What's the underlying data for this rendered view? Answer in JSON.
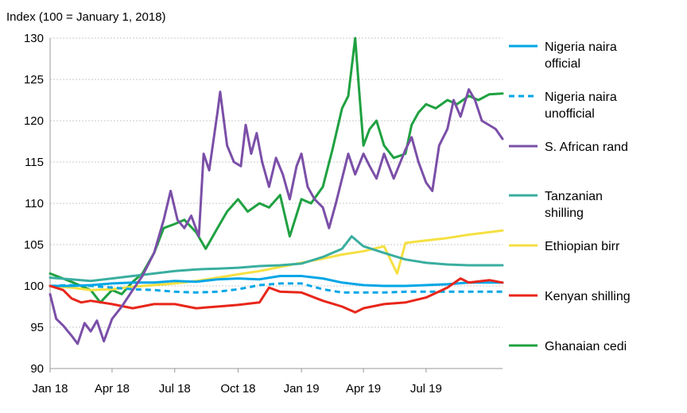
{
  "chart_data": {
    "type": "line",
    "title": "Index (100 = January 1, 2018)",
    "xlabel": "",
    "ylabel": "",
    "ylim": [
      90,
      130
    ],
    "yticks": [
      90,
      95,
      100,
      105,
      110,
      115,
      120,
      125,
      130
    ],
    "xlim": [
      "2018-01-01",
      "2019-10-20"
    ],
    "xticks": [
      {
        "date": "2018-01-01",
        "label": "Jan 18"
      },
      {
        "date": "2018-04-01",
        "label": "Apr 18"
      },
      {
        "date": "2018-07-01",
        "label": "Jul 18"
      },
      {
        "date": "2018-10-01",
        "label": "Oct 18"
      },
      {
        "date": "2019-01-01",
        "label": "Jan 19"
      },
      {
        "date": "2019-04-01",
        "label": "Apr 19"
      },
      {
        "date": "2019-07-01",
        "label": "Jul 19"
      }
    ],
    "grid": true,
    "legend_position": "right",
    "series": [
      {
        "name": "Nigeria naira official",
        "color": "#00a6e6",
        "dash": false,
        "points": [
          [
            "2018-01-01",
            100.0
          ],
          [
            "2018-02-01",
            100.0
          ],
          [
            "2018-03-01",
            100.1
          ],
          [
            "2018-04-01",
            100.3
          ],
          [
            "2018-05-01",
            100.4
          ],
          [
            "2018-06-01",
            100.4
          ],
          [
            "2018-07-01",
            100.6
          ],
          [
            "2018-08-01",
            100.5
          ],
          [
            "2018-09-01",
            100.8
          ],
          [
            "2018-10-01",
            100.9
          ],
          [
            "2018-11-01",
            100.8
          ],
          [
            "2018-12-01",
            101.2
          ],
          [
            "2019-01-01",
            101.2
          ],
          [
            "2019-02-01",
            100.9
          ],
          [
            "2019-03-01",
            100.4
          ],
          [
            "2019-04-01",
            100.1
          ],
          [
            "2019-05-01",
            100.0
          ],
          [
            "2019-06-01",
            100.0
          ],
          [
            "2019-07-01",
            100.1
          ],
          [
            "2019-08-01",
            100.2
          ],
          [
            "2019-09-01",
            100.4
          ],
          [
            "2019-10-20",
            100.4
          ]
        ]
      },
      {
        "name": "Nigeria naira unofficial",
        "color": "#00a6e6",
        "dash": true,
        "points": [
          [
            "2018-01-01",
            100.0
          ],
          [
            "2018-02-01",
            100.1
          ],
          [
            "2018-03-01",
            100.0
          ],
          [
            "2018-04-01",
            99.8
          ],
          [
            "2018-05-01",
            99.6
          ],
          [
            "2018-06-01",
            99.5
          ],
          [
            "2018-07-01",
            99.3
          ],
          [
            "2018-08-01",
            99.2
          ],
          [
            "2018-09-01",
            99.3
          ],
          [
            "2018-10-01",
            99.6
          ],
          [
            "2018-11-01",
            100.1
          ],
          [
            "2018-12-01",
            100.3
          ],
          [
            "2019-01-01",
            100.3
          ],
          [
            "2019-02-01",
            99.6
          ],
          [
            "2019-03-01",
            99.2
          ],
          [
            "2019-04-01",
            99.2
          ],
          [
            "2019-05-01",
            99.2
          ],
          [
            "2019-06-01",
            99.3
          ],
          [
            "2019-07-01",
            99.3
          ],
          [
            "2019-08-01",
            99.3
          ],
          [
            "2019-09-01",
            99.3
          ],
          [
            "2019-10-20",
            99.3
          ]
        ]
      },
      {
        "name": "S. African rand",
        "color": "#7b4fa8",
        "dash": false,
        "points": [
          [
            "2018-01-01",
            99.0
          ],
          [
            "2018-01-10",
            96.0
          ],
          [
            "2018-01-20",
            95.2
          ],
          [
            "2018-02-01",
            94.0
          ],
          [
            "2018-02-10",
            93.0
          ],
          [
            "2018-02-20",
            95.5
          ],
          [
            "2018-03-01",
            94.5
          ],
          [
            "2018-03-10",
            95.8
          ],
          [
            "2018-03-20",
            93.3
          ],
          [
            "2018-04-01",
            96.0
          ],
          [
            "2018-04-15",
            97.5
          ],
          [
            "2018-05-01",
            99.5
          ],
          [
            "2018-05-15",
            101.2
          ],
          [
            "2018-06-01",
            104.0
          ],
          [
            "2018-06-15",
            108.0
          ],
          [
            "2018-06-25",
            111.5
          ],
          [
            "2018-07-05",
            108.0
          ],
          [
            "2018-07-15",
            107.0
          ],
          [
            "2018-07-25",
            108.5
          ],
          [
            "2018-08-05",
            106.0
          ],
          [
            "2018-08-12",
            116.0
          ],
          [
            "2018-08-20",
            114.0
          ],
          [
            "2018-09-01",
            121.0
          ],
          [
            "2018-09-05",
            123.5
          ],
          [
            "2018-09-15",
            117.0
          ],
          [
            "2018-09-25",
            115.0
          ],
          [
            "2018-10-05",
            114.5
          ],
          [
            "2018-10-12",
            119.5
          ],
          [
            "2018-10-20",
            116.0
          ],
          [
            "2018-10-28",
            118.5
          ],
          [
            "2018-11-05",
            115.0
          ],
          [
            "2018-11-15",
            112.0
          ],
          [
            "2018-11-25",
            115.5
          ],
          [
            "2018-12-05",
            113.5
          ],
          [
            "2018-12-15",
            110.5
          ],
          [
            "2018-12-25",
            114.5
          ],
          [
            "2019-01-01",
            116.0
          ],
          [
            "2019-01-10",
            112.0
          ],
          [
            "2019-01-20",
            110.5
          ],
          [
            "2019-02-01",
            109.5
          ],
          [
            "2019-02-10",
            107.0
          ],
          [
            "2019-02-20",
            110.0
          ],
          [
            "2019-03-01",
            113.0
          ],
          [
            "2019-03-10",
            116.0
          ],
          [
            "2019-03-20",
            113.5
          ],
          [
            "2019-04-01",
            116.0
          ],
          [
            "2019-04-10",
            114.5
          ],
          [
            "2019-04-20",
            113.0
          ],
          [
            "2019-05-01",
            116.0
          ],
          [
            "2019-05-15",
            113.0
          ],
          [
            "2019-06-01",
            116.5
          ],
          [
            "2019-06-10",
            118.0
          ],
          [
            "2019-06-20",
            115.0
          ],
          [
            "2019-07-01",
            112.5
          ],
          [
            "2019-07-10",
            111.5
          ],
          [
            "2019-07-20",
            117.0
          ],
          [
            "2019-08-01",
            119.0
          ],
          [
            "2019-08-10",
            122.5
          ],
          [
            "2019-08-20",
            120.5
          ],
          [
            "2019-09-01",
            123.8
          ],
          [
            "2019-09-10",
            122.5
          ],
          [
            "2019-09-20",
            120.0
          ],
          [
            "2019-10-10",
            119.0
          ],
          [
            "2019-10-20",
            117.8
          ]
        ]
      },
      {
        "name": "Tanzanian shilling",
        "color": "#3aaea0",
        "dash": false,
        "points": [
          [
            "2018-01-01",
            101.0
          ],
          [
            "2018-02-01",
            100.8
          ],
          [
            "2018-03-01",
            100.6
          ],
          [
            "2018-04-01",
            100.9
          ],
          [
            "2018-05-01",
            101.2
          ],
          [
            "2018-06-01",
            101.5
          ],
          [
            "2018-07-01",
            101.8
          ],
          [
            "2018-08-01",
            102.0
          ],
          [
            "2018-09-01",
            102.1
          ],
          [
            "2018-10-01",
            102.2
          ],
          [
            "2018-11-01",
            102.4
          ],
          [
            "2018-12-01",
            102.5
          ],
          [
            "2019-01-01",
            102.7
          ],
          [
            "2019-02-01",
            103.5
          ],
          [
            "2019-03-01",
            104.5
          ],
          [
            "2019-03-15",
            106.0
          ],
          [
            "2019-04-01",
            104.8
          ],
          [
            "2019-05-01",
            104.0
          ],
          [
            "2019-06-01",
            103.2
          ],
          [
            "2019-07-01",
            102.8
          ],
          [
            "2019-08-01",
            102.6
          ],
          [
            "2019-09-01",
            102.5
          ],
          [
            "2019-10-20",
            102.5
          ]
        ]
      },
      {
        "name": "Ethiopian birr",
        "color": "#f5e042",
        "dash": false,
        "points": [
          [
            "2018-01-01",
            100.0
          ],
          [
            "2018-02-01",
            99.8
          ],
          [
            "2018-03-01",
            99.5
          ],
          [
            "2018-04-01",
            99.6
          ],
          [
            "2018-05-01",
            99.9
          ],
          [
            "2018-06-01",
            100.1
          ],
          [
            "2018-07-01",
            100.3
          ],
          [
            "2018-08-01",
            100.6
          ],
          [
            "2018-09-01",
            101.0
          ],
          [
            "2018-10-01",
            101.4
          ],
          [
            "2018-11-01",
            101.8
          ],
          [
            "2018-12-01",
            102.3
          ],
          [
            "2019-01-01",
            102.8
          ],
          [
            "2019-02-01",
            103.3
          ],
          [
            "2019-03-01",
            103.8
          ],
          [
            "2019-04-01",
            104.2
          ],
          [
            "2019-05-01",
            104.8
          ],
          [
            "2019-05-20",
            101.5
          ],
          [
            "2019-06-01",
            105.2
          ],
          [
            "2019-07-01",
            105.5
          ],
          [
            "2019-08-01",
            105.8
          ],
          [
            "2019-09-01",
            106.2
          ],
          [
            "2019-10-20",
            106.7
          ]
        ]
      },
      {
        "name": "Kenyan shilling",
        "color": "#e8261a",
        "dash": false,
        "points": [
          [
            "2018-01-01",
            100.0
          ],
          [
            "2018-01-20",
            99.5
          ],
          [
            "2018-02-01",
            98.5
          ],
          [
            "2018-02-15",
            98.0
          ],
          [
            "2018-03-01",
            98.2
          ],
          [
            "2018-04-01",
            97.8
          ],
          [
            "2018-05-01",
            97.3
          ],
          [
            "2018-06-01",
            97.8
          ],
          [
            "2018-07-01",
            97.8
          ],
          [
            "2018-08-01",
            97.3
          ],
          [
            "2018-09-01",
            97.5
          ],
          [
            "2018-10-01",
            97.7
          ],
          [
            "2018-11-01",
            98.0
          ],
          [
            "2018-11-15",
            99.8
          ],
          [
            "2018-12-01",
            99.3
          ],
          [
            "2019-01-01",
            99.2
          ],
          [
            "2019-02-01",
            98.2
          ],
          [
            "2019-03-01",
            97.5
          ],
          [
            "2019-03-20",
            96.8
          ],
          [
            "2019-04-01",
            97.3
          ],
          [
            "2019-05-01",
            97.8
          ],
          [
            "2019-06-01",
            98.0
          ],
          [
            "2019-07-01",
            98.6
          ],
          [
            "2019-08-01",
            99.8
          ],
          [
            "2019-08-20",
            100.9
          ],
          [
            "2019-09-01",
            100.4
          ],
          [
            "2019-10-01",
            100.7
          ],
          [
            "2019-10-20",
            100.4
          ]
        ]
      },
      {
        "name": "Ghanaian cedi",
        "color": "#1fa141",
        "dash": false,
        "points": [
          [
            "2018-01-01",
            101.5
          ],
          [
            "2018-02-01",
            100.5
          ],
          [
            "2018-03-01",
            99.5
          ],
          [
            "2018-03-15",
            98.0
          ],
          [
            "2018-04-01",
            99.5
          ],
          [
            "2018-04-15",
            99.0
          ],
          [
            "2018-05-01",
            100.5
          ],
          [
            "2018-05-15",
            101.5
          ],
          [
            "2018-06-01",
            104.0
          ],
          [
            "2018-06-15",
            107.0
          ],
          [
            "2018-07-01",
            107.5
          ],
          [
            "2018-07-15",
            108.0
          ],
          [
            "2018-08-01",
            106.5
          ],
          [
            "2018-08-15",
            104.5
          ],
          [
            "2018-09-01",
            107.0
          ],
          [
            "2018-09-15",
            109.0
          ],
          [
            "2018-10-01",
            110.5
          ],
          [
            "2018-10-15",
            109.0
          ],
          [
            "2018-11-01",
            110.0
          ],
          [
            "2018-11-15",
            109.5
          ],
          [
            "2018-12-01",
            111.0
          ],
          [
            "2018-12-15",
            106.0
          ],
          [
            "2019-01-01",
            110.5
          ],
          [
            "2019-01-15",
            110.0
          ],
          [
            "2019-02-01",
            112.0
          ],
          [
            "2019-02-15",
            116.5
          ],
          [
            "2019-03-01",
            121.5
          ],
          [
            "2019-03-10",
            123.0
          ],
          [
            "2019-03-20",
            130.0
          ],
          [
            "2019-03-25",
            124.5
          ],
          [
            "2019-04-01",
            117.0
          ],
          [
            "2019-04-10",
            119.0
          ],
          [
            "2019-04-20",
            120.0
          ],
          [
            "2019-05-01",
            117.0
          ],
          [
            "2019-05-15",
            115.5
          ],
          [
            "2019-06-01",
            116.0
          ],
          [
            "2019-06-10",
            119.5
          ],
          [
            "2019-06-20",
            121.0
          ],
          [
            "2019-07-01",
            122.0
          ],
          [
            "2019-07-15",
            121.5
          ],
          [
            "2019-08-01",
            122.5
          ],
          [
            "2019-08-15",
            122.0
          ],
          [
            "2019-09-01",
            123.0
          ],
          [
            "2019-09-15",
            122.5
          ],
          [
            "2019-10-01",
            123.2
          ],
          [
            "2019-10-20",
            123.3
          ]
        ]
      }
    ]
  }
}
